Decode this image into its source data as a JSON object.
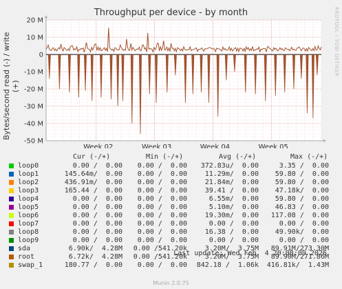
{
  "title": "Throughput per device - by month",
  "side_label": "RRDTOOL / TOBI OETIKER",
  "chart_data": {
    "type": "line",
    "title": "Throughput per device - by month",
    "ylabel": "Bytes/second read (-) / write (+)",
    "xlabel": "",
    "ylim": [
      -50,
      20
    ],
    "yunit": "M",
    "yticks": [
      {
        "value": 20,
        "label": "20 M"
      },
      {
        "value": 10,
        "label": "10 M"
      },
      {
        "value": 0,
        "label": "0"
      },
      {
        "value": -10,
        "label": "-10 M"
      },
      {
        "value": -20,
        "label": "-20 M"
      },
      {
        "value": -30,
        "label": "-30 M"
      },
      {
        "value": -40,
        "label": "-40 M"
      },
      {
        "value": -50,
        "label": "-50 M"
      }
    ],
    "xlim_days": [
      0,
      33
    ],
    "xticks": [
      {
        "day": 6,
        "label": "Week 02"
      },
      {
        "day": 13,
        "label": "Week 03"
      },
      {
        "day": 20,
        "label": "Week 04"
      },
      {
        "day": 27,
        "label": "Week 05"
      }
    ],
    "grid": true,
    "series": [
      {
        "name": "root",
        "color": "#a0522d",
        "write_base": 3.0,
        "write_spikes": [
          [
            0.3,
            5.5
          ],
          [
            1.8,
            6.0
          ],
          [
            3.1,
            5.0
          ],
          [
            4.8,
            7.0
          ],
          [
            5.9,
            6.0
          ],
          [
            7.5,
            15.5
          ],
          [
            8.9,
            5.5
          ],
          [
            9.6,
            9.0
          ],
          [
            10.2,
            6.5
          ],
          [
            11.6,
            5.5
          ],
          [
            12.2,
            12.5
          ],
          [
            13.4,
            6.5
          ],
          [
            14.1,
            8.0
          ],
          [
            15.0,
            6.5
          ],
          [
            17.3,
            4.5
          ],
          [
            19.6,
            4.0
          ],
          [
            24.2,
            4.0
          ],
          [
            26.6,
            4.5
          ],
          [
            30.3,
            4.5
          ],
          [
            32.6,
            5.0
          ]
        ],
        "read_spikes": [
          [
            0.4,
            -14
          ],
          [
            1.6,
            -20
          ],
          [
            2.8,
            -22
          ],
          [
            3.9,
            -25
          ],
          [
            4.7,
            -21
          ],
          [
            5.5,
            -27
          ],
          [
            6.6,
            -25
          ],
          [
            7.8,
            -26
          ],
          [
            8.6,
            -30
          ],
          [
            9.2,
            -27
          ],
          [
            10.3,
            -40
          ],
          [
            11.3,
            -46
          ],
          [
            12.4,
            -23
          ],
          [
            13.2,
            -28
          ],
          [
            14.5,
            -22
          ],
          [
            15.5,
            -12
          ],
          [
            16.7,
            -28
          ],
          [
            17.6,
            -23
          ],
          [
            18.6,
            -22
          ],
          [
            19.5,
            -28
          ],
          [
            20.6,
            -36
          ],
          [
            21.6,
            -15
          ],
          [
            22.6,
            -10
          ],
          [
            23.9,
            -22
          ],
          [
            25.1,
            -23
          ],
          [
            26.3,
            -27
          ],
          [
            27.5,
            -24
          ],
          [
            28.6,
            -22
          ],
          [
            29.7,
            -20
          ],
          [
            30.6,
            -14
          ],
          [
            31.3,
            -34
          ],
          [
            32.0,
            -37
          ],
          [
            32.5,
            -12
          ]
        ]
      }
    ]
  },
  "legend": {
    "headers": {
      "cur": "Cur (-/+)",
      "min": "Min (-/+)",
      "avg": "Avg (-/+)",
      "max": "Max (-/+)"
    },
    "rows": [
      {
        "name": "loop0",
        "color": "#00cc00",
        "cur": "0.00 /  0.00",
        "min": "0.00 /  0.00",
        "avg": "372.83u/  0.00",
        "max": "3.35 /  0.00"
      },
      {
        "name": "loop1",
        "color": "#0066b3",
        "cur": "145.64m/  0.00",
        "min": "0.00 /  0.00",
        "avg": "11.29m/  0.00",
        "max": "59.80 /  0.00"
      },
      {
        "name": "loop2",
        "color": "#ff8000",
        "cur": "436.91m/  0.00",
        "min": "0.00 /  0.00",
        "avg": "21.84m/  0.00",
        "max": "59.80 /  0.00"
      },
      {
        "name": "loop3",
        "color": "#ffcc00",
        "cur": "165.44 /  0.00",
        "min": "0.00 /  0.00",
        "avg": "39.41 /  0.00",
        "max": "47.18k/  0.00"
      },
      {
        "name": "loop4",
        "color": "#330099",
        "cur": "0.00 /  0.00",
        "min": "0.00 /  0.00",
        "avg": "6.55m/  0.00",
        "max": "59.80 /  0.00"
      },
      {
        "name": "loop5",
        "color": "#990099",
        "cur": "0.00 /  0.00",
        "min": "0.00 /  0.00",
        "avg": "5.10m/  0.00",
        "max": "46.83 /  0.00"
      },
      {
        "name": "loop6",
        "color": "#ccff00",
        "cur": "0.00 /  0.00",
        "min": "0.00 /  0.00",
        "avg": "19.30m/  0.00",
        "max": "117.08 /  0.00"
      },
      {
        "name": "loop7",
        "color": "#ff0000",
        "cur": "0.00 /  0.00",
        "min": "0.00 /  0.00",
        "avg": "0.00 /  0.00",
        "max": "0.00 /  0.00"
      },
      {
        "name": "loop8",
        "color": "#808080",
        "cur": "0.00 /  0.00",
        "min": "0.00 /  0.00",
        "avg": "16.38 /  0.00",
        "max": "49.90k/  0.00"
      },
      {
        "name": "loop9",
        "color": "#008f00",
        "cur": "0.00 /  0.00",
        "min": "0.00 /  0.00",
        "avg": "0.00 /  0.00",
        "max": "0.00 /  0.00"
      },
      {
        "name": "sda",
        "color": "#00487d",
        "cur": "6.90k/  4.28M",
        "min": "0.00 /541.20k",
        "avg": "3.20M/  3.75M",
        "max": "89.91M/273.30M"
      },
      {
        "name": "root",
        "color": "#b35a00",
        "cur": "6.72k/  4.28M",
        "min": "0.00 /541.20k",
        "avg": "3.20M/  3.75M",
        "max": "89.90M/271.86M"
      },
      {
        "name": "swap_1",
        "color": "#b38f00",
        "cur": "180.77 /  0.00",
        "min": "0.00 /  0.00",
        "avg": "842.18 /  1.06k",
        "max": "416.81k/  1.43M"
      }
    ]
  },
  "footer": {
    "last_update": "Last update: Wed Feb  4 20:00:09 2026",
    "munin": "Munin 2.0.75"
  }
}
